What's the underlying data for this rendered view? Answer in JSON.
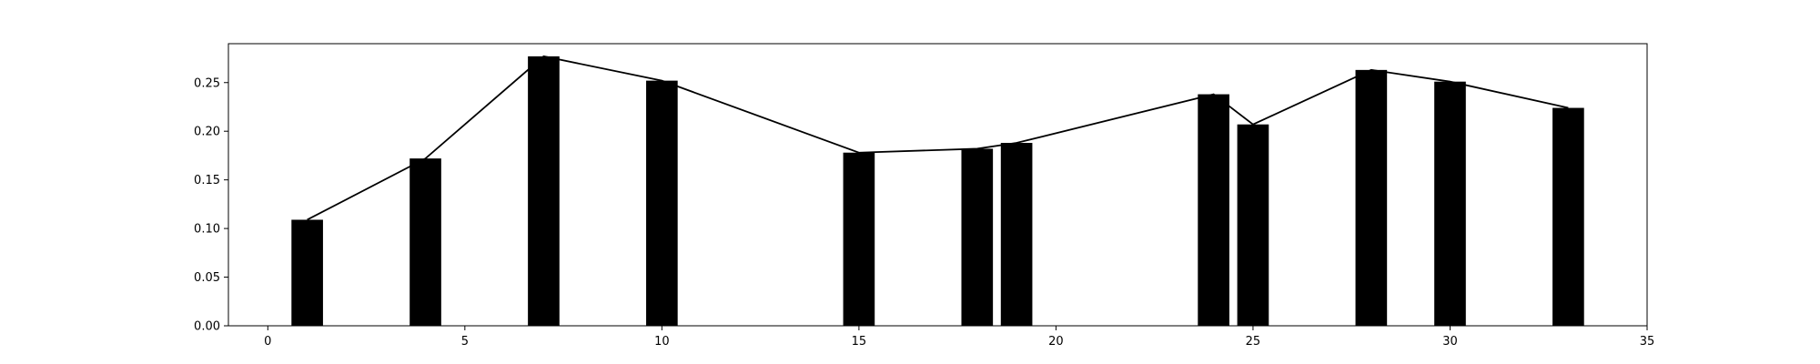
{
  "chart_data": {
    "type": "bar",
    "title": "",
    "xlabel": "",
    "ylabel": "",
    "xlim": [
      -1,
      35
    ],
    "ylim": [
      0,
      0.29
    ],
    "grid": false,
    "x_ticks": [
      0,
      5,
      10,
      15,
      20,
      25,
      30,
      35
    ],
    "y_ticks": [
      0.0,
      0.05,
      0.1,
      0.15,
      0.2,
      0.25
    ],
    "x_tick_labels": [
      "0",
      "5",
      "10",
      "15",
      "20",
      "25",
      "30",
      "35"
    ],
    "y_tick_labels": [
      "0.00",
      "0.05",
      "0.10",
      "0.15",
      "0.20",
      "0.25"
    ],
    "bar_width": 0.8,
    "colors": {
      "bar": "#000000",
      "line": "#000000",
      "axes": "#000000"
    },
    "series": [
      {
        "kind": "bar",
        "x": [
          1,
          4,
          7,
          10,
          15,
          18,
          19,
          24,
          25,
          28,
          30,
          33
        ],
        "values": [
          0.109,
          0.172,
          0.277,
          0.252,
          0.178,
          0.182,
          0.188,
          0.238,
          0.207,
          0.263,
          0.251,
          0.224
        ]
      },
      {
        "kind": "line",
        "x": [
          1,
          4,
          7,
          10,
          15,
          18,
          19,
          24,
          25,
          28,
          30,
          33
        ],
        "values": [
          0.109,
          0.172,
          0.277,
          0.252,
          0.178,
          0.182,
          0.188,
          0.238,
          0.207,
          0.263,
          0.251,
          0.224
        ]
      }
    ]
  }
}
